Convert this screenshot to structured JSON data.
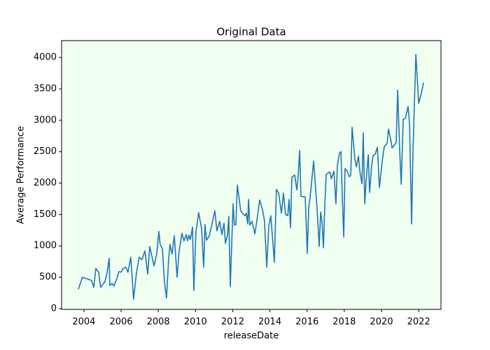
{
  "chart_data": {
    "type": "line",
    "title": "Original Data",
    "x_label": "releaseDate",
    "y_label": "Average Performance",
    "color": "#1f77b4",
    "plot_background": "#f0fff0",
    "grid": false,
    "xlim": [
      2002.8,
      2023.2
    ],
    "xticks": [
      2004,
      2006,
      2008,
      2010,
      2012,
      2014,
      2016,
      2018,
      2020,
      2022
    ],
    "ylim": [
      -12,
      4270
    ],
    "yticks": [
      0,
      500,
      1000,
      1500,
      2000,
      2500,
      3000,
      3500,
      4000
    ],
    "x": [
      2003.7,
      2003.92,
      2004.41,
      2004.53,
      2004.64,
      2004.79,
      2004.9,
      2005.13,
      2005.25,
      2005.36,
      2005.39,
      2005.51,
      2005.62,
      2005.77,
      2005.88,
      2005.99,
      2006.11,
      2006.26,
      2006.37,
      2006.52,
      2006.67,
      2006.82,
      2006.97,
      2007.12,
      2007.28,
      2007.43,
      2007.54,
      2007.77,
      2007.92,
      2008.03,
      2008.1,
      2008.22,
      2008.33,
      2008.44,
      2008.56,
      2008.63,
      2008.74,
      2008.86,
      2009.01,
      2009.12,
      2009.27,
      2009.38,
      2009.5,
      2009.57,
      2009.65,
      2009.72,
      2009.84,
      2009.91,
      2010.02,
      2010.17,
      2010.33,
      2010.44,
      2010.51,
      2010.59,
      2010.74,
      2010.89,
      2011.04,
      2011.15,
      2011.3,
      2011.42,
      2011.53,
      2011.61,
      2011.72,
      2011.79,
      2011.87,
      2012.02,
      2012.09,
      2012.17,
      2012.25,
      2012.43,
      2012.55,
      2012.66,
      2012.73,
      2012.81,
      2012.85,
      2012.92,
      2013.04,
      2013.19,
      2013.3,
      2013.45,
      2013.6,
      2013.71,
      2013.83,
      2013.94,
      2014.05,
      2014.24,
      2014.35,
      2014.47,
      2014.62,
      2014.73,
      2014.84,
      2014.96,
      2015.03,
      2015.11,
      2015.18,
      2015.33,
      2015.45,
      2015.52,
      2015.6,
      2015.67,
      2015.9,
      2016.01,
      2016.09,
      2016.2,
      2016.35,
      2016.54,
      2016.65,
      2016.73,
      2016.8,
      2016.88,
      2016.95,
      2017.03,
      2017.22,
      2017.3,
      2017.44,
      2017.55,
      2017.63,
      2017.74,
      2017.82,
      2017.89,
      2017.97,
      2018.04,
      2018.16,
      2018.27,
      2018.35,
      2018.42,
      2018.57,
      2018.65,
      2018.76,
      2018.83,
      2018.95,
      2019.02,
      2019.1,
      2019.17,
      2019.29,
      2019.36,
      2019.47,
      2019.55,
      2019.66,
      2019.78,
      2019.89,
      2020.04,
      2020.15,
      2020.3,
      2020.38,
      2020.49,
      2020.57,
      2020.68,
      2020.79,
      2020.87,
      2020.98,
      2021.06,
      2021.17,
      2021.28,
      2021.43,
      2021.51,
      2021.62,
      2021.7,
      2021.77,
      2021.85,
      2022.0,
      2022.15,
      2022.26
    ],
    "values": [
      310,
      500,
      450,
      340,
      640,
      580,
      340,
      430,
      580,
      800,
      370,
      400,
      360,
      480,
      590,
      580,
      640,
      660,
      580,
      820,
      150,
      560,
      820,
      780,
      920,
      550,
      990,
      680,
      880,
      1230,
      1020,
      960,
      430,
      170,
      810,
      1020,
      870,
      1160,
      500,
      920,
      1200,
      1080,
      1180,
      1080,
      1170,
      1100,
      1300,
      290,
      1210,
      1530,
      1270,
      660,
      1340,
      1090,
      1160,
      1350,
      1560,
      1240,
      1390,
      1180,
      1360,
      1040,
      1170,
      1470,
      350,
      1670,
      1330,
      1340,
      1970,
      1560,
      1510,
      1480,
      1520,
      1350,
      1740,
      1330,
      1390,
      1190,
      1400,
      1730,
      1580,
      1400,
      660,
      1310,
      1480,
      740,
      1900,
      1840,
      1520,
      1840,
      1500,
      1480,
      1740,
      1290,
      2090,
      2130,
      1890,
      2110,
      2520,
      1790,
      1780,
      880,
      1610,
      1880,
      2350,
      1580,
      990,
      1540,
      1380,
      970,
      1640,
      2140,
      2180,
      2070,
      2190,
      1670,
      2280,
      2480,
      2500,
      1800,
      1140,
      2230,
      2190,
      2100,
      2130,
      2890,
      2380,
      2260,
      2430,
      2200,
      1990,
      2800,
      1670,
      2020,
      2450,
      1850,
      2270,
      2440,
      2460,
      2570,
      1930,
      2350,
      2580,
      2630,
      2860,
      2710,
      2560,
      2600,
      2650,
      3480,
      2510,
      1980,
      3020,
      3030,
      3220,
      2940,
      1350,
      2580,
      3290,
      4050,
      3270,
      3440,
      3600
    ]
  }
}
